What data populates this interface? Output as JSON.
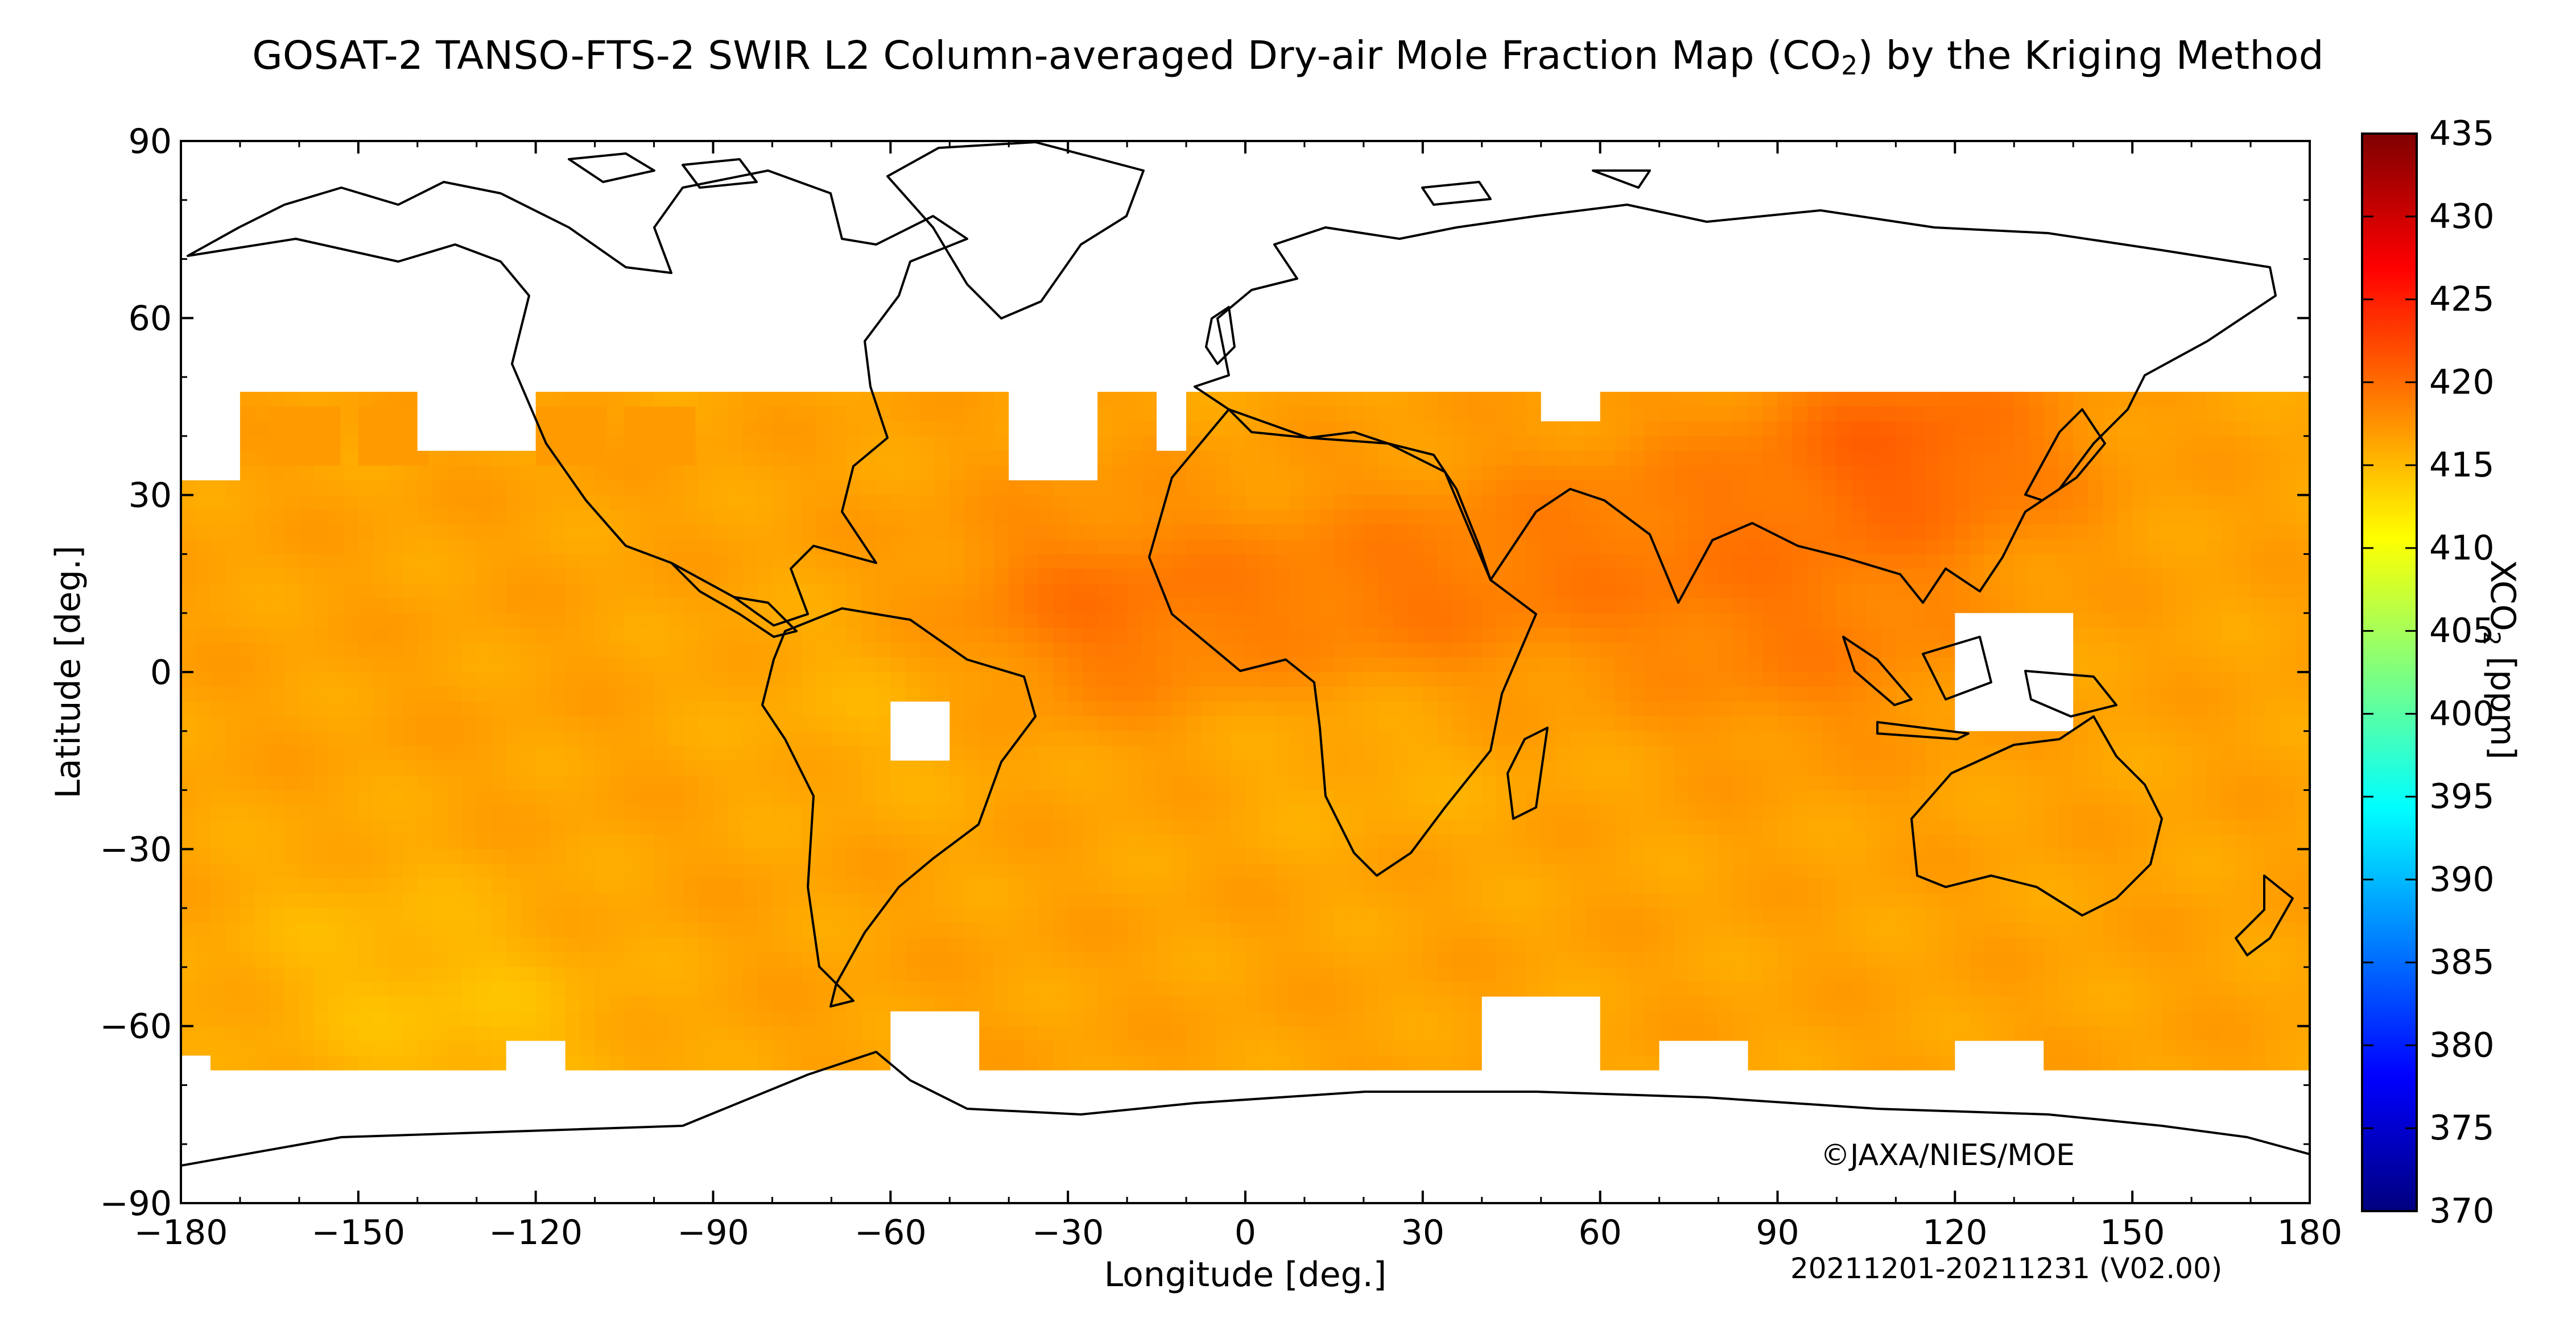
{
  "title": {
    "text_before": "GOSAT-2 TANSO-FTS-2 SWIR L2 Column-averaged Dry-air Mole Fraction Map (CO",
    "subscript": "2",
    "text_after": ") by the Kriging Method"
  },
  "axes": {
    "xlabel": "Longitude [deg.]",
    "ylabel": "Latitude [deg.]",
    "xlim": [
      -180,
      180
    ],
    "ylim": [
      -90,
      90
    ],
    "xticks": [
      -180,
      -150,
      -120,
      -90,
      -60,
      -30,
      0,
      30,
      60,
      90,
      120,
      150,
      180
    ],
    "xtick_labels": [
      "−180",
      "−150",
      "−120",
      "−90",
      "−60",
      "−30",
      "0",
      "30",
      "60",
      "90",
      "120",
      "150",
      "180"
    ],
    "yticks": [
      90,
      60,
      30,
      0,
      -30,
      -60,
      -90
    ],
    "ytick_labels": [
      "90",
      "60",
      "30",
      "0",
      "−30",
      "−60",
      "−90"
    ]
  },
  "colorbar": {
    "label_prefix": "XCO",
    "label_subscript": "2",
    "label_suffix": " [ppm]",
    "min": 370,
    "max": 435,
    "ticks": [
      435,
      430,
      425,
      420,
      415,
      410,
      405,
      400,
      395,
      390,
      385,
      380,
      375,
      370
    ],
    "tick_labels": [
      "435",
      "430",
      "425",
      "420",
      "415",
      "410",
      "405",
      "400",
      "395",
      "390",
      "385",
      "380",
      "375",
      "370"
    ],
    "colormap": [
      "#00007f",
      "#0000ff",
      "#007fff",
      "#00ffff",
      "#7fff7f",
      "#ffff00",
      "#ff7f00",
      "#ff0000",
      "#7f0000"
    ]
  },
  "copyright": "©JAXA/NIES/MOE",
  "period": "20211201-20211231 (V02.00)",
  "chart_data": {
    "type": "heatmap",
    "grid_resolution_deg": 2.5,
    "lon_range": [
      -180,
      180
    ],
    "lat_range_main": [
      -67.5,
      47.5
    ],
    "typical_value_ppm": 416.5,
    "value_range_ppm": [
      415,
      421
    ],
    "high_regions": [
      {
        "lon": 112,
        "lat": 37,
        "value": 420.5
      },
      {
        "lon": -25,
        "lat": 10,
        "value": 419.5
      },
      {
        "lon": 25,
        "lat": 12,
        "value": 419.0
      },
      {
        "lon": 95,
        "lat": 5,
        "value": 418.5
      },
      {
        "lon": 65,
        "lat": 22,
        "value": 418.5
      }
    ],
    "low_regions": [
      {
        "lon": -130,
        "lat": -62,
        "value": 415.0
      },
      {
        "lon": -150,
        "lat": -45,
        "value": 415.5
      },
      {
        "lon": 20,
        "lat": -10,
        "value": 415.5
      },
      {
        "lon": -60,
        "lat": -5,
        "value": 415.5
      }
    ],
    "missing_regions": [
      {
        "lon_range": [
          -180,
          180
        ],
        "lat_range": [
          47.5,
          90
        ]
      },
      {
        "lon_range": [
          -180,
          180
        ],
        "lat_range": [
          -90,
          -67.5
        ]
      },
      {
        "lon_range": [
          -60,
          -50
        ],
        "lat_range": [
          -15,
          -5
        ]
      },
      {
        "lon_range": [
          120,
          140
        ],
        "lat_range": [
          -10,
          10
        ]
      }
    ]
  }
}
